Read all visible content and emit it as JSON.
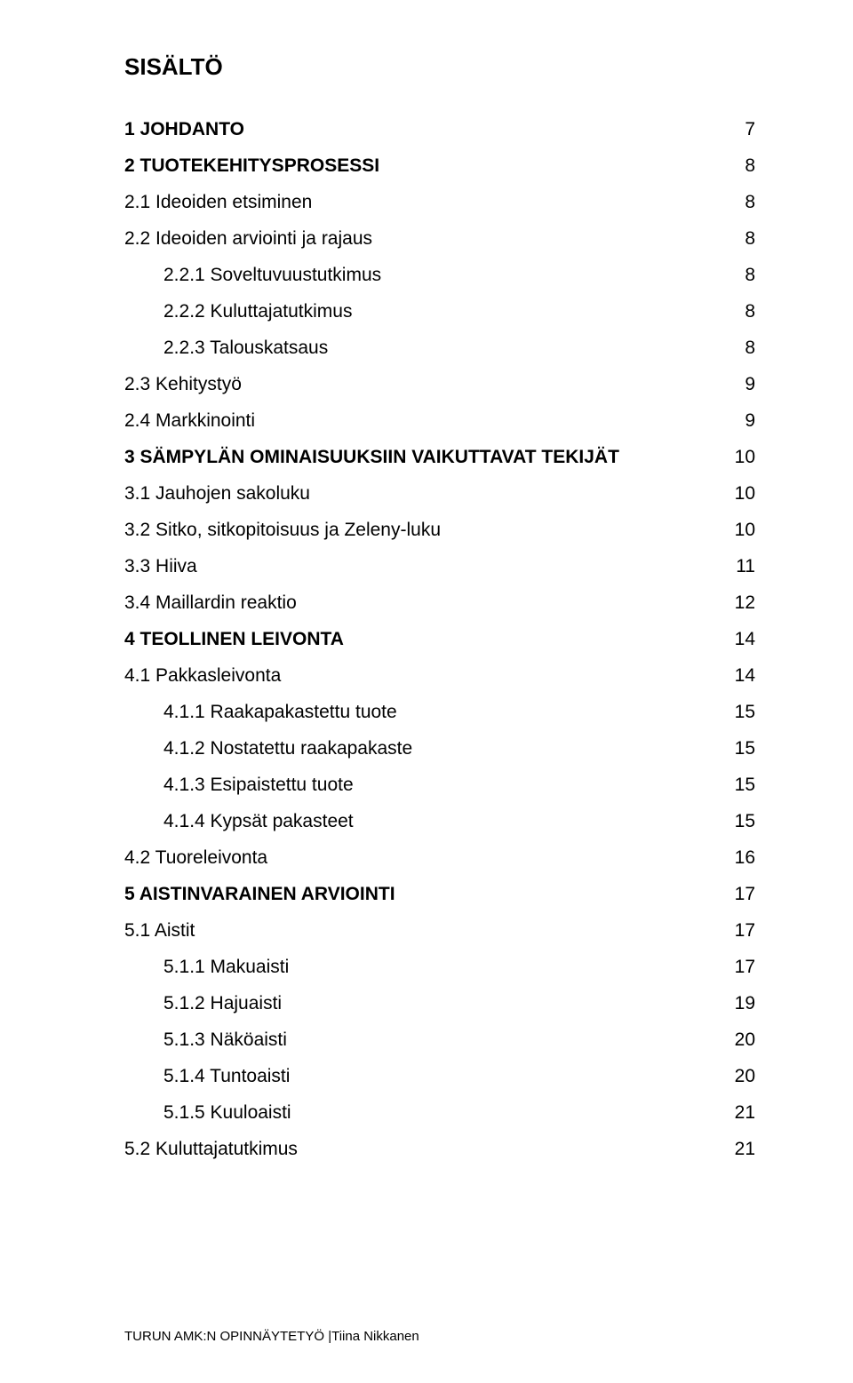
{
  "title": "SISÄLTÖ",
  "toc": [
    {
      "label": "1 JOHDANTO",
      "page": "7",
      "bold": true,
      "indent": 0
    },
    {
      "label": "2 TUOTEKEHITYSPROSESSI",
      "page": "8",
      "bold": true,
      "indent": 0
    },
    {
      "label": "2.1 Ideoiden etsiminen",
      "page": "8",
      "bold": false,
      "indent": 0
    },
    {
      "label": "2.2 Ideoiden arviointi ja rajaus",
      "page": "8",
      "bold": false,
      "indent": 0
    },
    {
      "label": "2.2.1 Soveltuvuustutkimus",
      "page": "8",
      "bold": false,
      "indent": 1
    },
    {
      "label": "2.2.2 Kuluttajatutkimus",
      "page": "8",
      "bold": false,
      "indent": 1
    },
    {
      "label": "2.2.3 Talouskatsaus",
      "page": "8",
      "bold": false,
      "indent": 1
    },
    {
      "label": "2.3 Kehitystyö",
      "page": "9",
      "bold": false,
      "indent": 0
    },
    {
      "label": "2.4 Markkinointi",
      "page": "9",
      "bold": false,
      "indent": 0
    },
    {
      "label": "3 SÄMPYLÄN OMINAISUUKSIIN VAIKUTTAVAT TEKIJÄT",
      "page": "10",
      "bold": true,
      "indent": 0
    },
    {
      "label": "3.1 Jauhojen sakoluku",
      "page": "10",
      "bold": false,
      "indent": 0
    },
    {
      "label": "3.2 Sitko, sitkopitoisuus ja Zeleny-luku",
      "page": "10",
      "bold": false,
      "indent": 0
    },
    {
      "label": "3.3 Hiiva",
      "page": "11",
      "bold": false,
      "indent": 0
    },
    {
      "label": "3.4 Maillardin reaktio",
      "page": "12",
      "bold": false,
      "indent": 0
    },
    {
      "label": "4 TEOLLINEN LEIVONTA",
      "page": "14",
      "bold": true,
      "indent": 0
    },
    {
      "label": "4.1 Pakkasleivonta",
      "page": "14",
      "bold": false,
      "indent": 0
    },
    {
      "label": "4.1.1 Raakapakastettu tuote",
      "page": "15",
      "bold": false,
      "indent": 1
    },
    {
      "label": "4.1.2 Nostatettu raakapakaste",
      "page": "15",
      "bold": false,
      "indent": 1
    },
    {
      "label": "4.1.3 Esipaistettu tuote",
      "page": "15",
      "bold": false,
      "indent": 1
    },
    {
      "label": "4.1.4 Kypsät pakasteet",
      "page": "15",
      "bold": false,
      "indent": 1
    },
    {
      "label": "4.2 Tuoreleivonta",
      "page": "16",
      "bold": false,
      "indent": 0
    },
    {
      "label": "5 AISTINVARAINEN ARVIOINTI",
      "page": "17",
      "bold": true,
      "indent": 0
    },
    {
      "label": "5.1 Aistit",
      "page": "17",
      "bold": false,
      "indent": 0
    },
    {
      "label": "5.1.1 Makuaisti",
      "page": "17",
      "bold": false,
      "indent": 1
    },
    {
      "label": "5.1.2 Hajuaisti",
      "page": "19",
      "bold": false,
      "indent": 1
    },
    {
      "label": "5.1.3 Näköaisti",
      "page": "20",
      "bold": false,
      "indent": 1
    },
    {
      "label": "5.1.4 Tuntoaisti",
      "page": "20",
      "bold": false,
      "indent": 1
    },
    {
      "label": "5.1.5 Kuuloaisti",
      "page": "21",
      "bold": false,
      "indent": 1
    },
    {
      "label": "5.2 Kuluttajatutkimus",
      "page": "21",
      "bold": false,
      "indent": 0
    }
  ],
  "footer": "TURUN AMK:N OPINNÄYTETYÖ |Tiina Nikkanen"
}
